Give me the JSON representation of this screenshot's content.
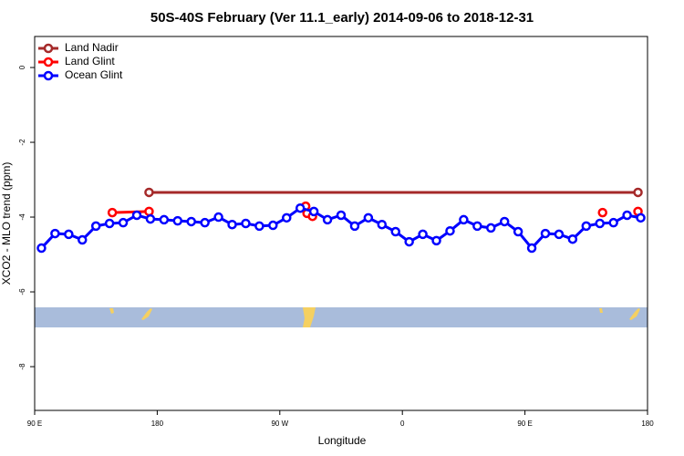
{
  "chart_data": {
    "type": "line",
    "title": "50S-40S February (Ver 11.1_early)   2014-09-06 to 2018-12-31",
    "x_label": "Longitude",
    "y_label": "XCO2 - MLO trend (ppm)",
    "xlim": [
      90,
      540
    ],
    "ylim": [
      -9.17,
      0.83
    ],
    "xticks": [
      {
        "value": 90,
        "label": "90 E"
      },
      {
        "value": 180,
        "label": "180"
      },
      {
        "value": 270,
        "label": "90 W"
      },
      {
        "value": 360,
        "label": "0"
      },
      {
        "value": 450,
        "label": "90 E"
      },
      {
        "value": 540,
        "label": "180"
      }
    ],
    "yticks": [
      0,
      -2,
      -4,
      -6,
      -8
    ],
    "legend": "top-left",
    "series": [
      {
        "name": "Land Nadir",
        "color": "#a52a2a",
        "x": [
          174,
          533
        ],
        "values": [
          -3.34,
          -3.34
        ]
      },
      {
        "name": "Land Glint",
        "color": "#ff0000",
        "x": [
          147,
          174,
          230,
          289,
          290,
          294,
          400,
          507,
          520,
          533
        ],
        "values": [
          -3.88,
          -3.85,
          null,
          -3.71,
          -3.9,
          -3.98,
          null,
          -3.88,
          null,
          -3.85
        ]
      },
      {
        "name": "Ocean Glint",
        "color": "#0000ff",
        "x": [
          95,
          105,
          115,
          125,
          135,
          145,
          155,
          165,
          175,
          185,
          195,
          205,
          215,
          225,
          235,
          245,
          255,
          265,
          275,
          285,
          295,
          305,
          315,
          325,
          335,
          345,
          355,
          365,
          375,
          385,
          395,
          405,
          415,
          425,
          435,
          445,
          455,
          465,
          475,
          485,
          495,
          505,
          515,
          525,
          535
        ],
        "values": [
          -4.83,
          -4.44,
          -4.46,
          -4.61,
          -4.24,
          -4.17,
          -4.15,
          -3.95,
          -4.05,
          -4.07,
          -4.1,
          -4.12,
          -4.15,
          -4.0,
          -4.2,
          -4.17,
          -4.24,
          -4.22,
          -4.02,
          -3.76,
          -3.85,
          -4.07,
          -3.95,
          -4.24,
          -4.02,
          -4.2,
          -4.39,
          -4.66,
          -4.46,
          -4.63,
          -4.37,
          -4.07,
          -4.24,
          -4.29,
          -4.12,
          -4.39,
          -4.83,
          -4.44,
          -4.46,
          -4.59,
          -4.24,
          -4.17,
          -4.15,
          -3.95,
          -4.02
        ]
      }
    ]
  }
}
